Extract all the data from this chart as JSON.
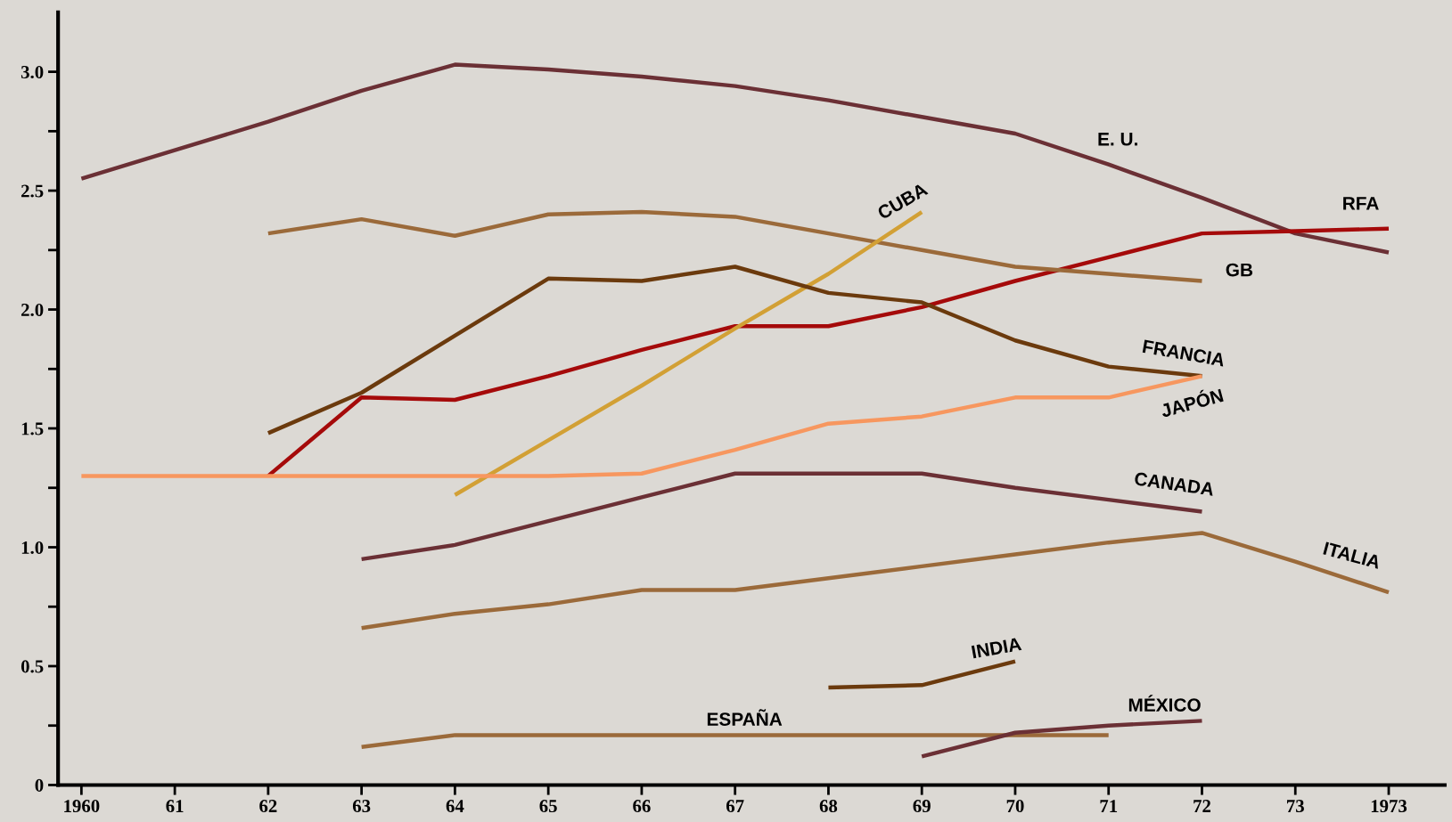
{
  "chart_data": {
    "type": "line",
    "categories": [
      "1960",
      "61",
      "62",
      "63",
      "64",
      "65",
      "66",
      "67",
      "68",
      "69",
      "70",
      "71",
      "72",
      "73",
      "1973"
    ],
    "series": [
      {
        "name": "E. U.",
        "color": "#6b3035",
        "values": [
          2.55,
          2.67,
          2.79,
          2.92,
          3.03,
          3.01,
          2.98,
          2.94,
          2.88,
          2.81,
          2.74,
          2.61,
          2.47,
          2.32,
          2.24
        ]
      },
      {
        "name": "RFA",
        "color": "#a50a0a",
        "values": [
          null,
          null,
          1.3,
          1.63,
          1.62,
          1.72,
          1.83,
          1.93,
          1.93,
          2.01,
          2.12,
          2.22,
          2.32,
          2.33,
          2.34
        ]
      },
      {
        "name": "GB",
        "color": "#9b6a3a",
        "values": [
          null,
          null,
          2.32,
          2.38,
          2.31,
          2.4,
          2.41,
          2.39,
          2.32,
          2.25,
          2.18,
          2.15,
          2.12,
          null,
          null
        ]
      },
      {
        "name": "CUBA",
        "color": "#d2a035",
        "values": [
          null,
          null,
          null,
          null,
          1.22,
          1.45,
          1.68,
          1.92,
          2.15,
          2.41,
          null,
          null,
          null,
          null,
          null
        ]
      },
      {
        "name": "FRANCIA",
        "color": "#6b3a0d",
        "values": [
          null,
          null,
          1.48,
          1.65,
          1.89,
          2.13,
          2.12,
          2.18,
          2.07,
          2.03,
          1.87,
          1.76,
          1.72,
          null,
          null
        ]
      },
      {
        "name": "JAPÓN",
        "color": "#f7975f",
        "values": [
          1.3,
          1.3,
          1.3,
          1.3,
          1.3,
          1.3,
          1.31,
          1.41,
          1.52,
          1.55,
          1.63,
          1.63,
          1.72,
          null,
          null
        ]
      },
      {
        "name": "CANADA",
        "color": "#6b3035",
        "values": [
          null,
          null,
          null,
          0.95,
          1.01,
          1.11,
          1.21,
          1.31,
          1.31,
          1.31,
          1.25,
          1.2,
          1.15,
          null,
          null
        ]
      },
      {
        "name": "ITALIA",
        "color": "#9b6a3a",
        "values": [
          null,
          null,
          null,
          0.66,
          0.72,
          0.76,
          0.82,
          0.82,
          0.87,
          0.92,
          0.97,
          1.02,
          1.06,
          0.94,
          0.81
        ]
      },
      {
        "name": "INDIA",
        "color": "#6b3a0d",
        "values": [
          null,
          null,
          null,
          null,
          null,
          null,
          null,
          null,
          0.41,
          0.42,
          0.52,
          null,
          null,
          null,
          null
        ]
      },
      {
        "name": "ESPAÑA",
        "color": "#9b6a3a",
        "values": [
          null,
          null,
          null,
          0.16,
          0.21,
          0.21,
          0.21,
          0.21,
          0.21,
          0.21,
          0.21,
          0.21,
          null,
          null,
          null
        ]
      },
      {
        "name": "MÉXICO",
        "color": "#6b3035",
        "values": [
          null,
          null,
          null,
          null,
          null,
          null,
          null,
          null,
          null,
          0.12,
          0.22,
          0.25,
          0.27,
          null,
          null
        ]
      }
    ],
    "ylim": [
      0,
      3.25
    ],
    "yticks": [
      0,
      {
        "value": 0.25,
        "label": null
      },
      0.5,
      {
        "value": 0.75,
        "label": null
      },
      "1.0",
      {
        "value": 1.25,
        "label": null
      },
      1.5,
      {
        "value": 1.75,
        "label": null
      },
      "2.0",
      {
        "value": 2.25,
        "label": null
      },
      2.5,
      {
        "value": 2.75,
        "label": null
      },
      "3.0"
    ],
    "grid": false,
    "legend": false,
    "marker": "none",
    "line_style": "solid"
  }
}
